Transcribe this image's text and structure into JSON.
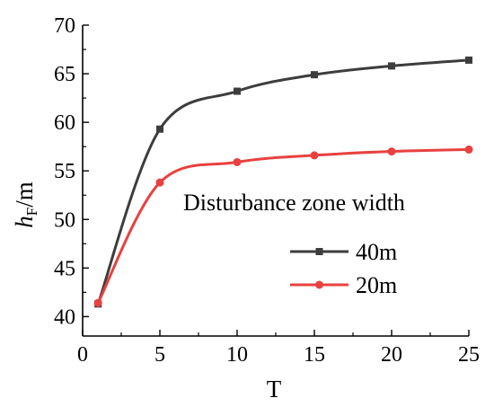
{
  "chart_data": {
    "type": "line",
    "xlabel": "T",
    "ylabel_main": "h",
    "ylabel_sub": "F",
    "ylabel_unit": "/m",
    "xlim": [
      0,
      25
    ],
    "ylim": [
      38,
      70
    ],
    "xticks": [
      0,
      5,
      10,
      15,
      20,
      25
    ],
    "yticks": [
      40,
      45,
      50,
      55,
      60,
      65,
      70
    ],
    "grid": false,
    "legend_title": "Disturbance zone width",
    "legend_position": "center-right",
    "series": [
      {
        "name": "40m",
        "color": "#3d3d3d",
        "marker": "square",
        "x": [
          1,
          5,
          10,
          15,
          20,
          25
        ],
        "y": [
          41.3,
          59.3,
          63.2,
          64.9,
          65.8,
          66.4
        ]
      },
      {
        "name": "20m",
        "color": "#e8413f",
        "marker": "circle",
        "x": [
          1,
          5,
          10,
          15,
          20,
          25
        ],
        "y": [
          41.4,
          53.8,
          55.9,
          56.6,
          57.0,
          57.2
        ]
      }
    ]
  }
}
